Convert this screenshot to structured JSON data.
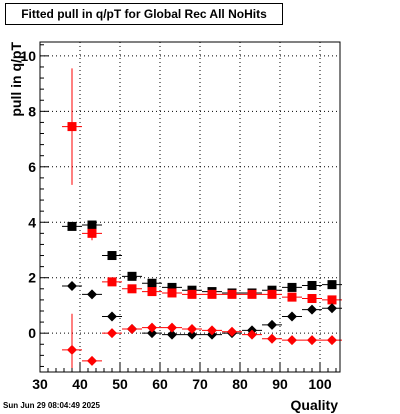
{
  "title": "Fitted pull in q/pT for Global Rec All NoHits",
  "timestamp": "Sun Jun 29 08:04:49 2025",
  "colors": {
    "black_series": "#000000",
    "red_series": "#ff0000",
    "grid": "#000000"
  },
  "chart_data": {
    "type": "scatter",
    "title": "Fitted pull in q/pT for Global Rec All NoHits",
    "xlabel": "Quality",
    "ylabel": "pull in q/pT",
    "xlim": [
      30,
      105
    ],
    "ylim": [
      -1.4,
      10.5
    ],
    "grid": true,
    "x_ticks": [
      30,
      40,
      50,
      60,
      70,
      80,
      90,
      100
    ],
    "y_ticks": [
      0,
      2,
      4,
      6,
      8,
      10
    ],
    "x_tick_labels": [
      "30",
      "40",
      "50",
      "60",
      "70",
      "80",
      "90",
      "100"
    ],
    "y_tick_labels": [
      "0",
      "2",
      "4",
      "6",
      "8",
      "10"
    ],
    "series": [
      {
        "marker": "square",
        "color": "#000000",
        "x": [
          38,
          43,
          48,
          53,
          58,
          63,
          68,
          73,
          78,
          83,
          88,
          93,
          98,
          103
        ],
        "y": [
          3.85,
          3.9,
          2.8,
          2.05,
          1.8,
          1.65,
          1.55,
          1.5,
          1.45,
          1.45,
          1.55,
          1.65,
          1.72,
          1.75
        ],
        "yerr": [
          0.12,
          0.12,
          0.08,
          0.06,
          0.05,
          0.04,
          0.04,
          0.04,
          0.04,
          0.04,
          0.04,
          0.05,
          0.05,
          0.05
        ]
      },
      {
        "marker": "square",
        "color": "#ff0000",
        "x": [
          38,
          43,
          48,
          53,
          58,
          63,
          68,
          73,
          78,
          83,
          88,
          93,
          98,
          103
        ],
        "y": [
          7.45,
          3.6,
          1.85,
          1.6,
          1.5,
          1.45,
          1.4,
          1.4,
          1.4,
          1.4,
          1.4,
          1.3,
          1.25,
          1.2
        ],
        "yerr": [
          2.1,
          0.25,
          0.1,
          0.06,
          0.05,
          0.04,
          0.04,
          0.04,
          0.04,
          0.04,
          0.04,
          0.05,
          0.05,
          0.05
        ]
      },
      {
        "marker": "diamond",
        "color": "#000000",
        "x": [
          38,
          43,
          48,
          53,
          58,
          63,
          68,
          73,
          78,
          83,
          88,
          93,
          98,
          103
        ],
        "y": [
          1.7,
          1.4,
          0.6,
          0.15,
          0.0,
          -0.05,
          -0.05,
          -0.05,
          0.0,
          0.1,
          0.3,
          0.6,
          0.85,
          0.9
        ],
        "yerr": [
          0.15,
          0.08,
          0.05,
          0.04,
          0.03,
          0.03,
          0.03,
          0.03,
          0.03,
          0.03,
          0.03,
          0.04,
          0.04,
          0.04
        ]
      },
      {
        "marker": "diamond",
        "color": "#ff0000",
        "x": [
          38,
          43,
          48,
          53,
          58,
          63,
          68,
          73,
          78,
          83,
          88,
          93,
          98,
          103
        ],
        "y": [
          -0.6,
          -1.0,
          0.0,
          0.15,
          0.2,
          0.2,
          0.15,
          0.1,
          0.05,
          -0.05,
          -0.2,
          -0.25,
          -0.25,
          -0.25
        ],
        "yerr": [
          1.3,
          0.15,
          0.06,
          0.04,
          0.03,
          0.03,
          0.03,
          0.03,
          0.03,
          0.03,
          0.03,
          0.04,
          0.04,
          0.04
        ]
      }
    ]
  }
}
